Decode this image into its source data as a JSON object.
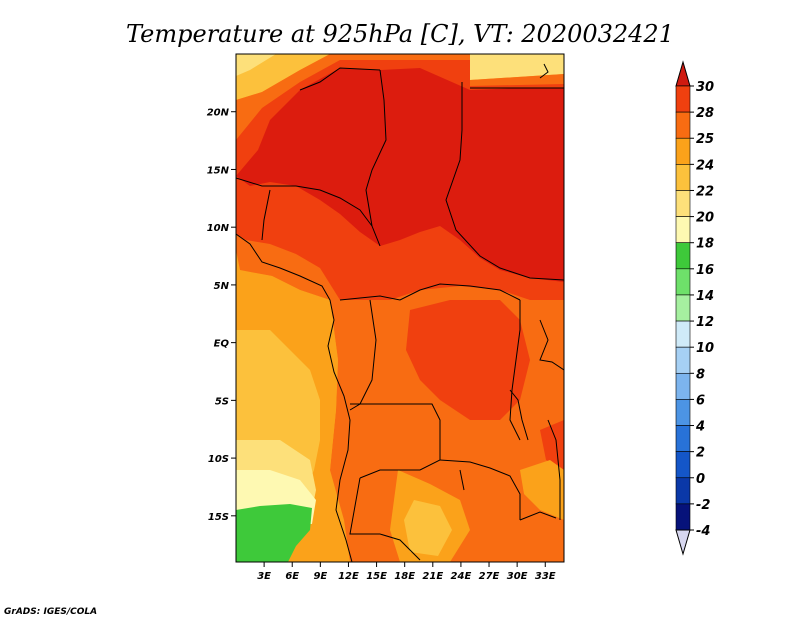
{
  "title": "Temperature at 925hPa [C], VT: 2020032421",
  "credit": "GrADS: IGES/COLA",
  "lat_ticks": [
    {
      "label": "20N",
      "value": 20
    },
    {
      "label": "15N",
      "value": 15
    },
    {
      "label": "10N",
      "value": 10
    },
    {
      "label": "5N",
      "value": 5
    },
    {
      "label": "EQ",
      "value": 0
    },
    {
      "label": "5S",
      "value": -5
    },
    {
      "label": "10S",
      "value": -10
    },
    {
      "label": "15S",
      "value": -15
    }
  ],
  "lon_ticks": [
    {
      "label": "3E",
      "value": 3
    },
    {
      "label": "6E",
      "value": 6
    },
    {
      "label": "9E",
      "value": 9
    },
    {
      "label": "12E",
      "value": 12
    },
    {
      "label": "15E",
      "value": 15
    },
    {
      "label": "18E",
      "value": 18
    },
    {
      "label": "21E",
      "value": 21
    },
    {
      "label": "24E",
      "value": 24
    },
    {
      "label": "27E",
      "value": 27
    },
    {
      "label": "30E",
      "value": 30
    },
    {
      "label": "33E",
      "value": 33
    }
  ],
  "map_extent": {
    "lon_min": 0,
    "lon_max": 35,
    "lat_min": -19,
    "lat_max": 25
  },
  "colorbar": {
    "labels": [
      "30",
      "28",
      "25",
      "24",
      "22",
      "20",
      "18",
      "16",
      "14",
      "12",
      "10",
      "8",
      "6",
      "4",
      "2",
      "0",
      "-2",
      "-4"
    ],
    "colors": [
      "#dc1c0e",
      "#f0400f",
      "#f86c12",
      "#fba21a",
      "#fcc13c",
      "#fde07a",
      "#fef9b2",
      "#3ec93a",
      "#6ee06a",
      "#a6f0a0",
      "#cfeaf8",
      "#a6d0f4",
      "#7cb4ee",
      "#4c94e4",
      "#2872d8",
      "#1456c8",
      "#0a38a8",
      "#06127a"
    ],
    "top_arrow_color": "#d01a10",
    "bottom_arrow_color": "#d8d8f0"
  },
  "map_colors": {
    "t30": "#dc1c0e",
    "t28": "#f0400f",
    "t25": "#f86c12",
    "t24": "#fba21a",
    "t22": "#fcc13c",
    "t20": "#fde07a",
    "t18": "#fef9b2",
    "t16": "#3ec93a"
  }
}
